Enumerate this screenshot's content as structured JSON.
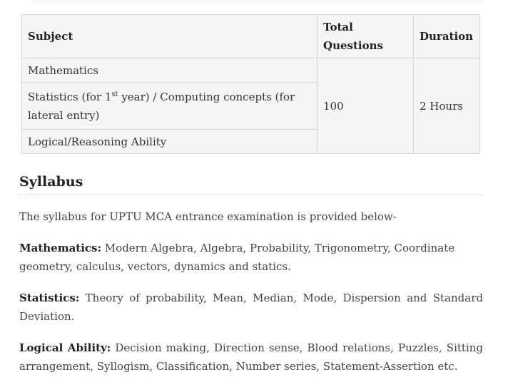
{
  "table": {
    "headers": {
      "subject": "Subject",
      "questions": "Total Questions",
      "duration": "Duration"
    },
    "rows": [
      {
        "subject": "Mathematics"
      },
      {
        "subject_prefix": "Statistics (for 1",
        "subject_sup": "st",
        "subject_suffix": " year) / Computing concepts (for lateral entry)"
      },
      {
        "subject": "Logical/Reasoning Ability"
      }
    ],
    "total_questions": "100",
    "duration": "2 Hours"
  },
  "syllabus": {
    "heading": "Syllabus",
    "intro": "The syllabus for UPTU MCA entrance examination is provided below-",
    "sections": [
      {
        "label": "Mathematics:",
        "text": " Modern Algebra, Algebra, Probability, Trigonometry, Coordinate geometry, calculus, vectors, dynamics and statics."
      },
      {
        "label": "Statistics:",
        "text": " Theory of probability, Mean, Median, Mode, Dispersion and Standard Deviation."
      },
      {
        "label": "Logical Ability:",
        "text": " Decision making, Direction sense, Blood relations, Puzzles, Sitting arrangement, Syllogism, Classification, Number series, Statement-Assertion etc."
      }
    ]
  }
}
